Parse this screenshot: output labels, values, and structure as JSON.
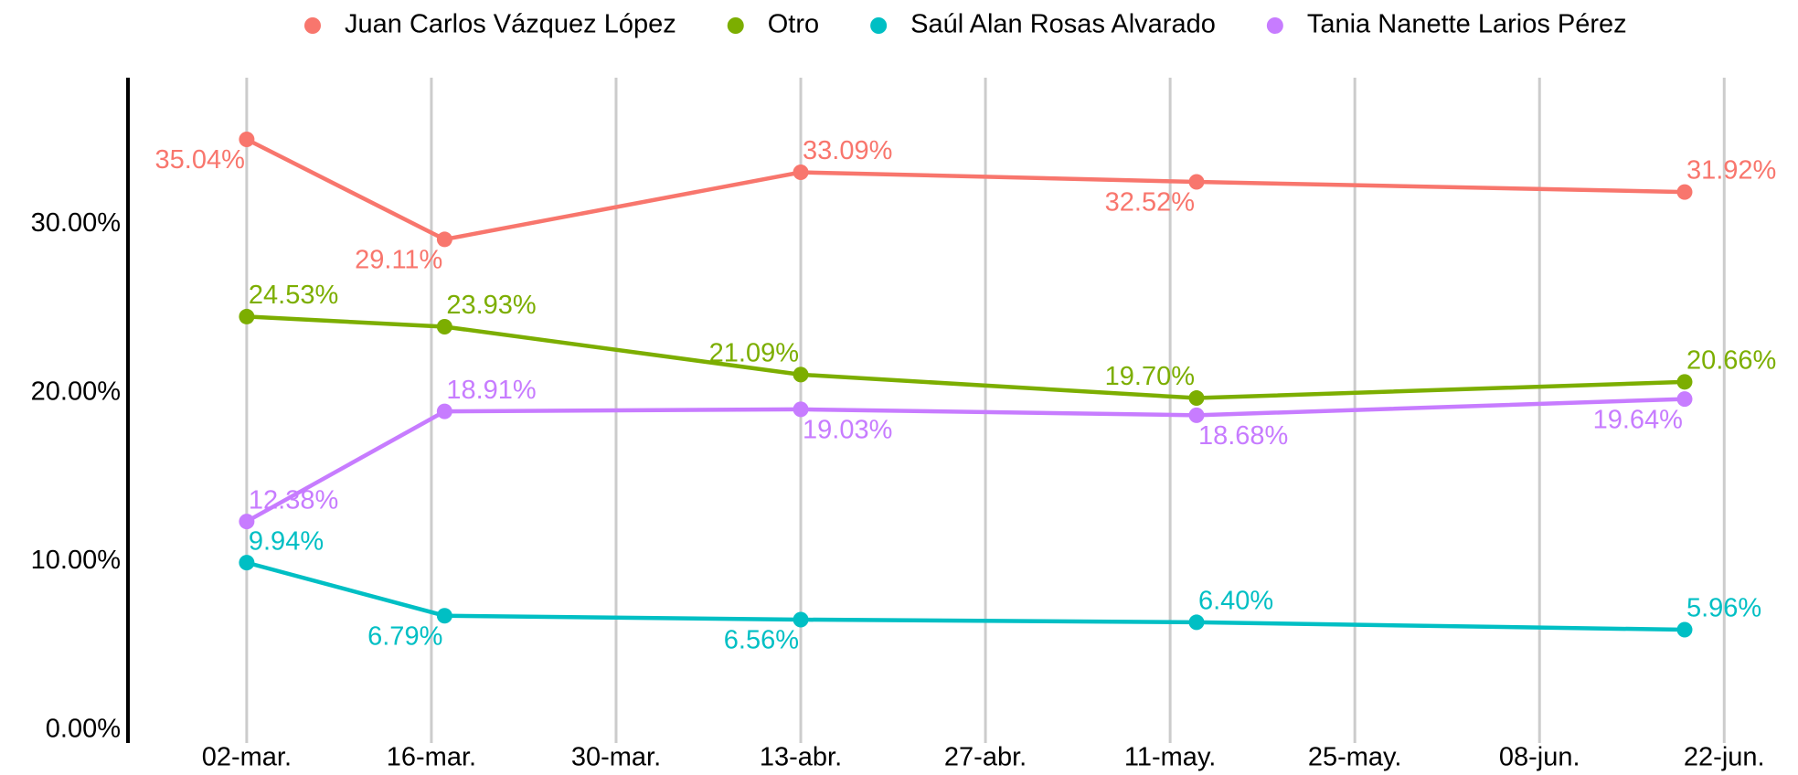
{
  "chart_data": {
    "type": "line",
    "x": [
      61,
      76,
      103,
      133,
      170
    ],
    "xlim": [
      52,
      177
    ],
    "xticks": [
      {
        "value": 61,
        "label": "02-mar."
      },
      {
        "value": 75,
        "label": "16-mar."
      },
      {
        "value": 89,
        "label": "30-mar."
      },
      {
        "value": 103,
        "label": "13-abr."
      },
      {
        "value": 117,
        "label": "27-abr."
      },
      {
        "value": 131,
        "label": "11-may."
      },
      {
        "value": 145,
        "label": "25-may."
      },
      {
        "value": 159,
        "label": "08-jun."
      },
      {
        "value": 173,
        "label": "22-jun."
      }
    ],
    "ylim": [
      0,
      38.7
    ],
    "yticks": [
      {
        "value": 0,
        "label": "0.00%"
      },
      {
        "value": 10,
        "label": "10.00%"
      },
      {
        "value": 20,
        "label": "20.00%"
      },
      {
        "value": 30,
        "label": "30.00%"
      }
    ],
    "grid": "x",
    "legend": "top",
    "series": [
      {
        "name": "Juan Carlos Vázquez López",
        "color": "#f8766d",
        "values": [
          35.04,
          29.11,
          33.09,
          32.52,
          31.92
        ],
        "value_labels": [
          "35.04%",
          "29.11%",
          "33.09%",
          "32.52%",
          "31.92%"
        ]
      },
      {
        "name": "Otro",
        "color": "#7cae00",
        "values": [
          24.53,
          23.93,
          21.09,
          19.7,
          20.66
        ],
        "value_labels": [
          "24.53%",
          "23.93%",
          "21.09%",
          "19.70%",
          "20.66%"
        ]
      },
      {
        "name": "Saúl Alan Rosas Alvarado",
        "color": "#00bfc4",
        "values": [
          9.94,
          6.79,
          6.56,
          6.4,
          5.96
        ],
        "value_labels": [
          "9.94%",
          "6.79%",
          "6.56%",
          "6.40%",
          "5.96%"
        ]
      },
      {
        "name": "Tania Nanette Larios Pérez",
        "color": "#c77cff",
        "values": [
          12.38,
          18.91,
          19.03,
          18.68,
          19.64
        ],
        "value_labels": [
          "12.38%",
          "18.91%",
          "19.03%",
          "18.68%",
          "19.64%"
        ]
      }
    ]
  }
}
